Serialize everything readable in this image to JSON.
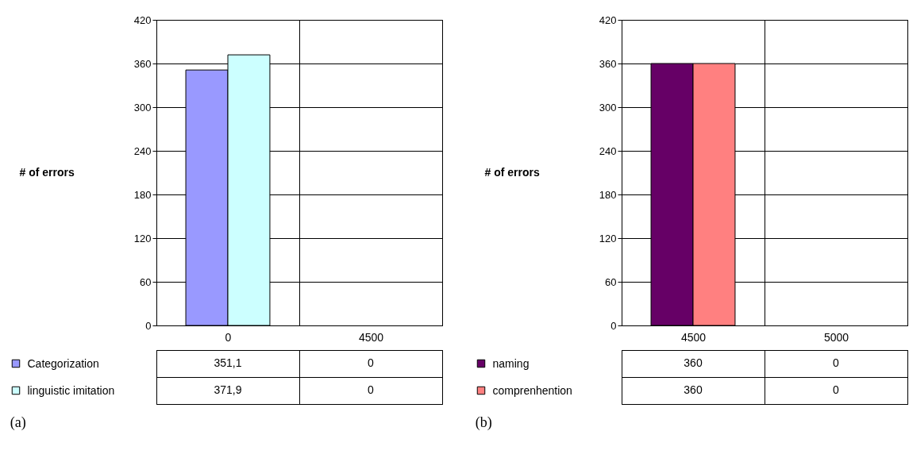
{
  "chart_data": [
    {
      "type": "bar",
      "categories": [
        "0",
        "4500"
      ],
      "ylabel": "# of errors",
      "ylim": [
        0,
        420
      ],
      "yticks": [
        0,
        60,
        120,
        180,
        240,
        300,
        360,
        420
      ],
      "grid": "y",
      "legend": "bottom",
      "annotations": [
        "(a)"
      ],
      "series": [
        {
          "name": "Categorization",
          "color": "#9999ff",
          "values": [
            351.1,
            0
          ],
          "value_labels": [
            "351,1",
            "0"
          ]
        },
        {
          "name": "linguistic imitation",
          "color": "#ccffff",
          "values": [
            371.9,
            0
          ],
          "value_labels": [
            "371,9",
            "0"
          ]
        }
      ]
    },
    {
      "type": "bar",
      "categories": [
        "4500",
        "5000"
      ],
      "ylabel": "# of errors",
      "ylim": [
        0,
        420
      ],
      "yticks": [
        0,
        60,
        120,
        180,
        240,
        300,
        360,
        420
      ],
      "grid": "y",
      "legend": "bottom",
      "annotations": [
        "(b)"
      ],
      "series": [
        {
          "name": "naming",
          "color": "#660066",
          "values": [
            360,
            0
          ],
          "value_labels": [
            "360",
            "0"
          ]
        },
        {
          "name": "comprenhention",
          "color": "#ff8080",
          "values": [
            360,
            0
          ],
          "value_labels": [
            "360",
            "0"
          ]
        }
      ]
    }
  ]
}
